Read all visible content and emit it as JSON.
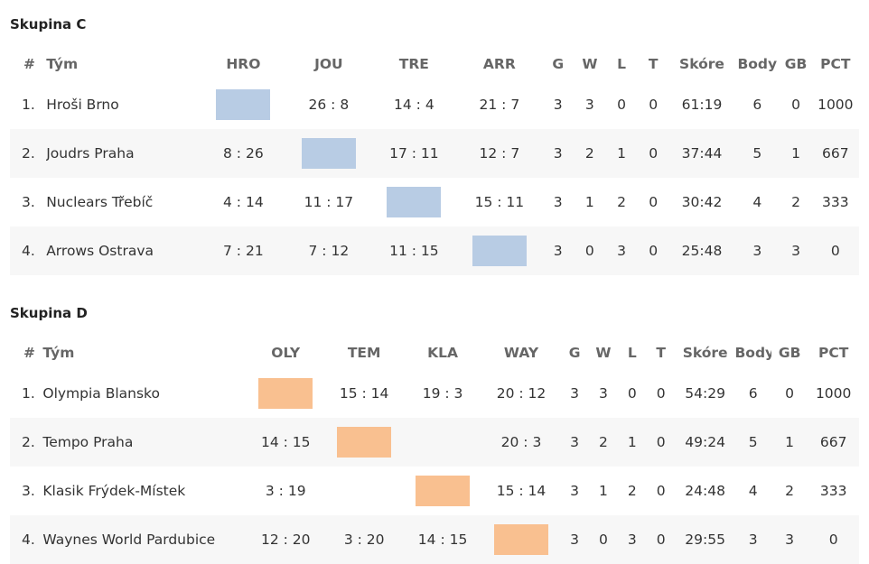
{
  "groups": [
    {
      "title": "Skupina C",
      "diag_color": "#b8cce4",
      "headers": [
        "#",
        "Tým",
        "HRO",
        "JOU",
        "TRE",
        "ARR",
        "G",
        "W",
        "L",
        "T",
        "Skóre",
        "Body",
        "GB",
        "PCT"
      ],
      "rows": [
        {
          "rank": "1.",
          "team": "Hroši Brno",
          "r": [
            "",
            "26 : 8",
            "14 : 4",
            "21 : 7"
          ],
          "g": "3",
          "w": "3",
          "l": "0",
          "t": "0",
          "score": "61:19",
          "points": "6",
          "gb": "0",
          "pct": "1000"
        },
        {
          "rank": "2.",
          "team": "Joudrs Praha",
          "r": [
            "8 : 26",
            "",
            "17 : 11",
            "12 : 7"
          ],
          "g": "3",
          "w": "2",
          "l": "1",
          "t": "0",
          "score": "37:44",
          "points": "5",
          "gb": "1",
          "pct": "667"
        },
        {
          "rank": "3.",
          "team": "Nuclears Třebíč",
          "r": [
            "4 : 14",
            "11 : 17",
            "",
            "15 : 11"
          ],
          "g": "3",
          "w": "1",
          "l": "2",
          "t": "0",
          "score": "30:42",
          "points": "4",
          "gb": "2",
          "pct": "333"
        },
        {
          "rank": "4.",
          "team": "Arrows Ostrava",
          "r": [
            "7 : 21",
            "7 : 12",
            "11 : 15",
            ""
          ],
          "g": "3",
          "w": "0",
          "l": "3",
          "t": "0",
          "score": "25:48",
          "points": "3",
          "gb": "3",
          "pct": "0"
        }
      ]
    },
    {
      "title": "Skupina D",
      "diag_color": "#f9c090",
      "headers": [
        "#",
        "Tým",
        "OLY",
        "TEM",
        "KLA",
        "WAY",
        "G",
        "W",
        "L",
        "T",
        "Skóre",
        "Body",
        "GB",
        "PCT"
      ],
      "rows": [
        {
          "rank": "1.",
          "team": "Olympia Blansko",
          "r": [
            "",
            "15 : 14",
            "19 : 3",
            "20 : 12"
          ],
          "g": "3",
          "w": "3",
          "l": "0",
          "t": "0",
          "score": "54:29",
          "points": "6",
          "gb": "0",
          "pct": "1000"
        },
        {
          "rank": "2.",
          "team": "Tempo Praha",
          "r": [
            "14 : 15",
            "",
            "",
            "20 : 3"
          ],
          "g": "3",
          "w": "2",
          "l": "1",
          "t": "0",
          "score": "49:24",
          "points": "5",
          "gb": "1",
          "pct": "667"
        },
        {
          "rank": "3.",
          "team": "Klasik Frýdek-Místek",
          "r": [
            "3 : 19",
            "",
            "",
            "15 : 14"
          ],
          "g": "3",
          "w": "1",
          "l": "2",
          "t": "0",
          "score": "24:48",
          "points": "4",
          "gb": "2",
          "pct": "333"
        },
        {
          "rank": "4.",
          "team": "Waynes World Pardubice",
          "r": [
            "12 : 20",
            "3 : 20",
            "14 : 15",
            ""
          ],
          "g": "3",
          "w": "0",
          "l": "3",
          "t": "0",
          "score": "29:55",
          "points": "3",
          "gb": "3",
          "pct": "0"
        }
      ]
    }
  ]
}
